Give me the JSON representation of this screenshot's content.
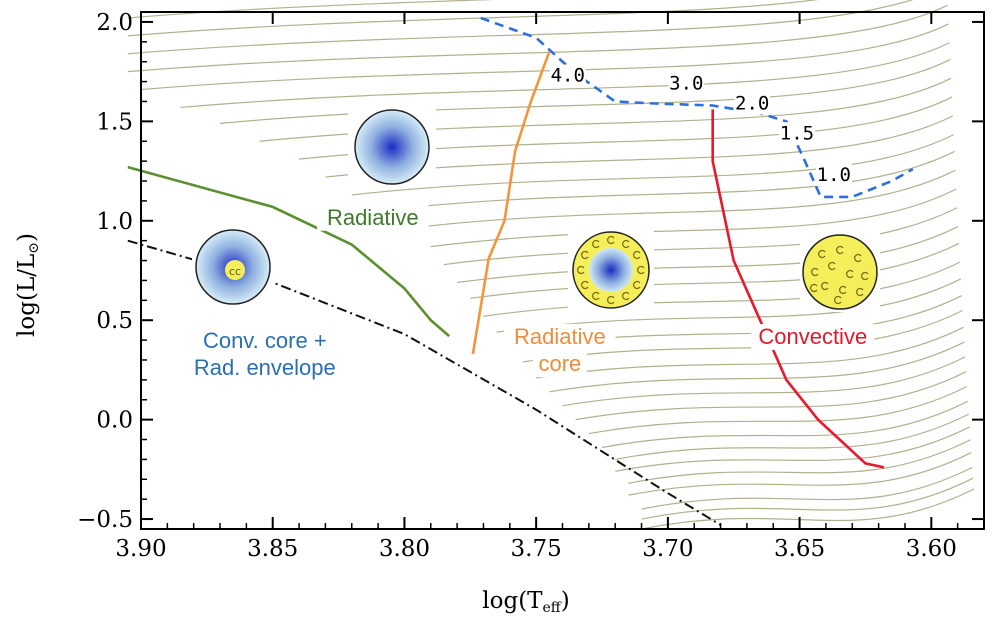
{
  "colors": {
    "tracks": "#b3b08e",
    "birthline": "#111111",
    "green": "#5c8f2e",
    "orange": "#f2953b",
    "red": "#e8192c",
    "dashed": "#2d6fe0",
    "radiative_text": "#3d7a2a",
    "conv_core_text": "#2a6fb0",
    "radcore_text": "#f08c3a",
    "convective_text": "#e3182b",
    "star_yellow": "#f4ee5a",
    "star_blue": "#1a2bc4"
  },
  "chart_data": {
    "type": "line",
    "xlabel": "log(Teff)",
    "xlabel_main": "log(T",
    "xlabel_sub": "eff",
    "xlabel_close": ")",
    "ylabel": "log(L/L⊙)",
    "ylabel_main": "log(L/L",
    "ylabel_sun": "⊙",
    "ylabel_close": ")",
    "xlim": [
      3.9,
      3.58
    ],
    "ylim": [
      -0.55,
      2.05
    ],
    "x_reversed": true,
    "xticks": [
      3.9,
      3.85,
      3.8,
      3.75,
      3.7,
      3.65,
      3.6
    ],
    "xtick_labels": [
      "3.90",
      "3.85",
      "3.80",
      "3.75",
      "3.70",
      "3.65",
      "3.60"
    ],
    "yticks": [
      -0.5,
      0.0,
      0.5,
      1.0,
      1.5,
      2.0
    ],
    "ytick_labels": [
      "−0.5",
      "0.0",
      "0.5",
      "1.0",
      "1.5",
      "2.0"
    ],
    "series": [
      {
        "key": "birthline",
        "style": "dash-dot",
        "points": [
          [
            3.905,
            0.9
          ],
          [
            3.85,
            0.69
          ],
          [
            3.8,
            0.43
          ],
          [
            3.75,
            0.05
          ],
          [
            3.7,
            -0.37
          ],
          [
            3.68,
            -0.53
          ]
        ]
      },
      {
        "key": "green",
        "points": [
          [
            3.905,
            1.27
          ],
          [
            3.85,
            1.07
          ],
          [
            3.82,
            0.88
          ],
          [
            3.8,
            0.66
          ],
          [
            3.79,
            0.5
          ],
          [
            3.783,
            0.42
          ]
        ]
      },
      {
        "key": "orange",
        "points": [
          [
            3.774,
            0.33
          ],
          [
            3.768,
            0.81
          ],
          [
            3.762,
            1.0
          ],
          [
            3.758,
            1.35
          ],
          [
            3.752,
            1.6
          ],
          [
            3.745,
            1.85
          ]
        ]
      },
      {
        "key": "red",
        "points": [
          [
            3.683,
            1.56
          ],
          [
            3.683,
            1.3
          ],
          [
            3.679,
            1.05
          ],
          [
            3.675,
            0.8
          ],
          [
            3.665,
            0.5
          ],
          [
            3.655,
            0.2
          ],
          [
            3.643,
            0.0
          ],
          [
            3.625,
            -0.22
          ],
          [
            3.618,
            -0.24
          ]
        ]
      },
      {
        "key": "dashed",
        "style": "dashed",
        "points": [
          [
            3.771,
            2.02
          ],
          [
            3.75,
            1.92
          ],
          [
            3.735,
            1.74
          ],
          [
            3.72,
            1.6
          ],
          [
            3.705,
            1.59
          ],
          [
            3.683,
            1.58
          ],
          [
            3.665,
            1.54
          ],
          [
            3.655,
            1.5
          ],
          [
            3.648,
            1.3
          ],
          [
            3.642,
            1.12
          ],
          [
            3.63,
            1.12
          ],
          [
            3.615,
            1.2
          ],
          [
            3.607,
            1.26
          ]
        ]
      }
    ],
    "track_endpoints": [
      [
        3.71,
        -0.55
      ],
      [
        3.71,
        -0.5
      ],
      [
        3.71,
        -0.45
      ],
      [
        3.715,
        -0.38
      ],
      [
        3.715,
        -0.32
      ],
      [
        3.72,
        -0.26
      ],
      [
        3.72,
        -0.2
      ],
      [
        3.725,
        -0.14
      ],
      [
        3.73,
        -0.07
      ],
      [
        3.735,
        0.0
      ],
      [
        3.74,
        0.07
      ],
      [
        3.745,
        0.14
      ],
      [
        3.75,
        0.21
      ],
      [
        3.755,
        0.29
      ],
      [
        3.76,
        0.36
      ],
      [
        3.765,
        0.44
      ],
      [
        3.77,
        0.52
      ],
      [
        3.775,
        0.61
      ],
      [
        3.78,
        0.69
      ],
      [
        3.785,
        0.78
      ],
      [
        3.79,
        0.87
      ],
      [
        3.8,
        0.96
      ],
      [
        3.81,
        1.05
      ],
      [
        3.82,
        1.13
      ],
      [
        3.83,
        1.22
      ],
      [
        3.84,
        1.31
      ],
      [
        3.855,
        1.4
      ],
      [
        3.87,
        1.49
      ],
      [
        3.885,
        1.57
      ],
      [
        3.9,
        1.66
      ],
      [
        3.905,
        1.75
      ],
      [
        3.905,
        1.84
      ],
      [
        3.905,
        1.93
      ],
      [
        3.905,
        2.02
      ]
    ],
    "annotations": [
      {
        "text": "4.0",
        "x": 3.738,
        "y": 1.7
      },
      {
        "text": "3.0",
        "x": 3.693,
        "y": 1.66
      },
      {
        "text": "2.0",
        "x": 3.668,
        "y": 1.56
      },
      {
        "text": "1.5",
        "x": 3.651,
        "y": 1.41
      },
      {
        "text": "1.0",
        "x": 3.637,
        "y": 1.2
      }
    ],
    "regions": [
      {
        "key": "radiative",
        "lines": [
          "Radiative"
        ],
        "x": 3.812,
        "y": 0.98
      },
      {
        "key": "conv_core",
        "lines": [
          "Conv. core +",
          "Rad. envelope"
        ],
        "x": 3.853,
        "y": 0.36
      },
      {
        "key": "radcore",
        "lines": [
          "Radiative",
          "core"
        ],
        "x": 3.741,
        "y": 0.38
      },
      {
        "key": "convective",
        "lines": [
          "Convective"
        ],
        "x": 3.645,
        "y": 0.38
      }
    ],
    "grid": false
  }
}
